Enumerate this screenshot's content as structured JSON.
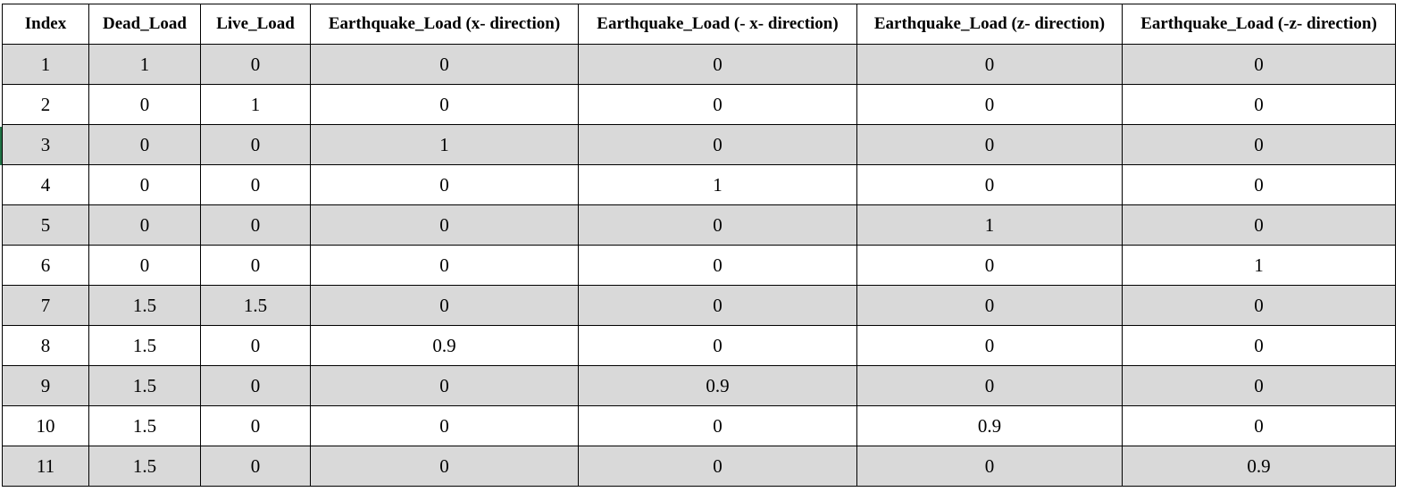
{
  "table": {
    "columns": [
      "Index",
      "Dead_Load",
      "Live_Load",
      "Earthquake_Load (x- direction)",
      "Earthquake_Load (- x- direction)",
      "Earthquake_Load (z- direction)",
      "Earthquake_Load (-z- direction)"
    ],
    "rows": [
      [
        "1",
        "1",
        "0",
        "0",
        "0",
        "0",
        "0"
      ],
      [
        "2",
        "0",
        "1",
        "0",
        "0",
        "0",
        "0"
      ],
      [
        "3",
        "0",
        "0",
        "1",
        "0",
        "0",
        "0"
      ],
      [
        "4",
        "0",
        "0",
        "0",
        "1",
        "0",
        "0"
      ],
      [
        "5",
        "0",
        "0",
        "0",
        "0",
        "1",
        "0"
      ],
      [
        "6",
        "0",
        "0",
        "0",
        "0",
        "0",
        "1"
      ],
      [
        "7",
        "1.5",
        "1.5",
        "0",
        "0",
        "0",
        "0"
      ],
      [
        "8",
        "1.5",
        "0",
        "0.9",
        "0",
        "0",
        "0"
      ],
      [
        "9",
        "1.5",
        "0",
        "0",
        "0.9",
        "0",
        "0"
      ],
      [
        "10",
        "1.5",
        "0",
        "0",
        "0",
        "0.9",
        "0"
      ],
      [
        "11",
        "1.5",
        "0",
        "0",
        "0",
        "0",
        "0.9"
      ]
    ]
  },
  "colors": {
    "stripe": "#d9d9d9",
    "border": "#000000",
    "selection": "#217346"
  }
}
